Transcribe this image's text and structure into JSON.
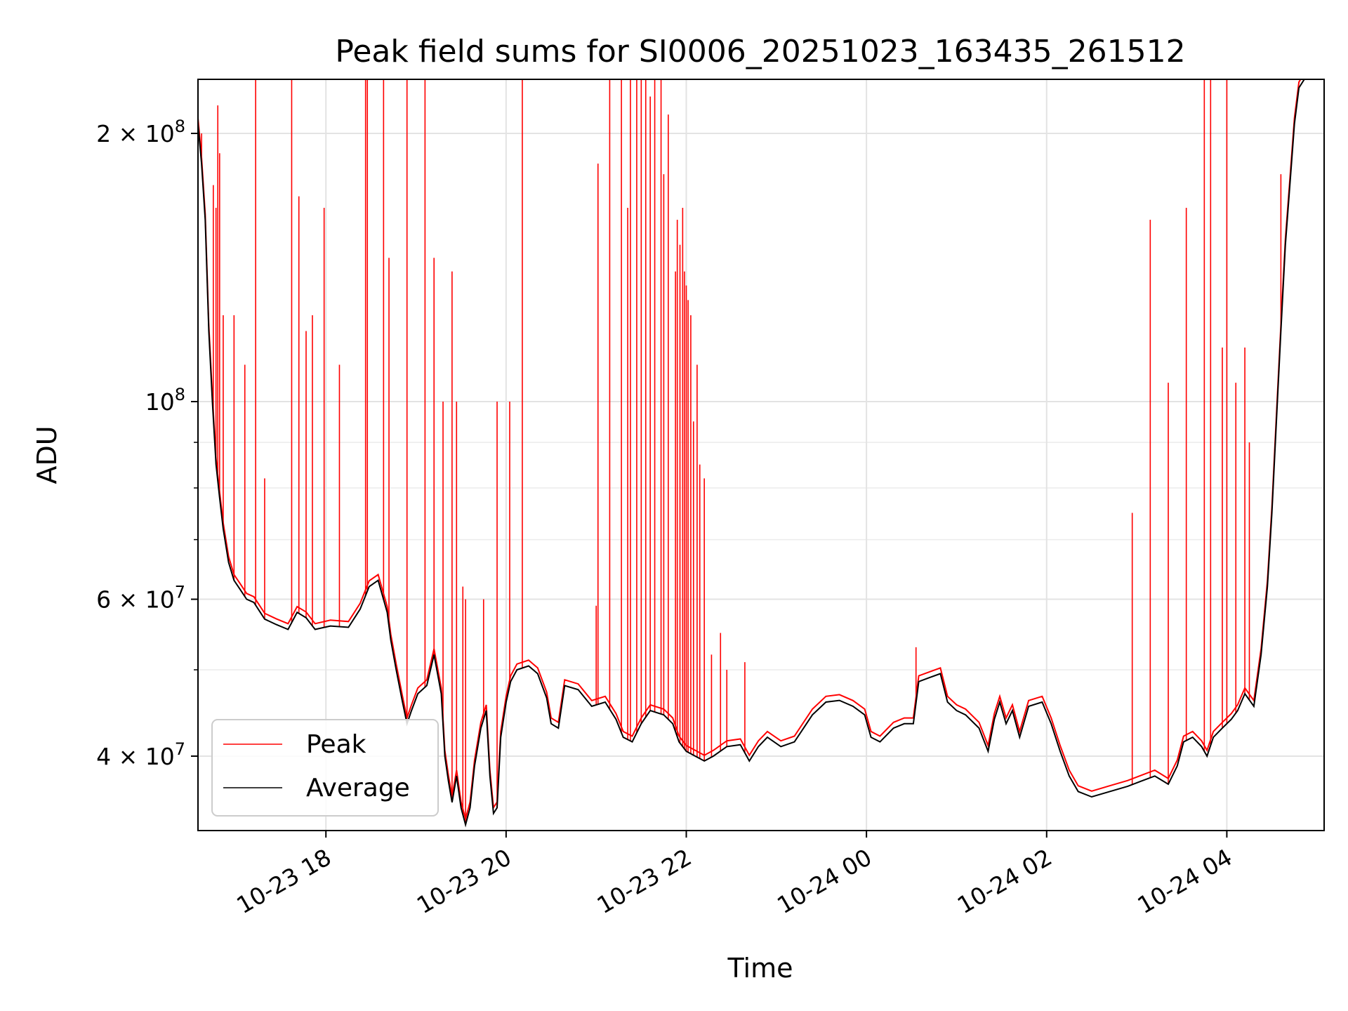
{
  "chart_data": {
    "type": "line",
    "title": "Peak field sums for SI0006_20251023_163435_261512",
    "xlabel": "Time",
    "ylabel": "ADU",
    "yscale": "log",
    "xlim_hours": [
      16.58,
      29.08
    ],
    "ylim": [
      33000000,
      230000000
    ],
    "grid": true,
    "legend_position": "lower-left",
    "x_ticks": [
      {
        "hour": 18,
        "label": "10-23 18"
      },
      {
        "hour": 20,
        "label": "10-23 20"
      },
      {
        "hour": 22,
        "label": "10-23 22"
      },
      {
        "hour": 24,
        "label": "10-24 00"
      },
      {
        "hour": 26,
        "label": "10-24 02"
      },
      {
        "hour": 28,
        "label": "10-24 04"
      }
    ],
    "y_ticks": [
      {
        "value": 40000000,
        "mantissa": "4",
        "exponent": "7"
      },
      {
        "value": 60000000,
        "mantissa": "6",
        "exponent": "7"
      },
      {
        "value": 100000000,
        "mantissa": "",
        "exponent": "8"
      },
      {
        "value": 200000000,
        "mantissa": "2",
        "exponent": "8"
      }
    ],
    "y_tick_base": "10",
    "y_tick_times": "×",
    "y_minor_ticks": [
      50000000,
      70000000,
      80000000,
      90000000
    ],
    "series": [
      {
        "name": "Peak",
        "color": "#ff0000",
        "spikes": [
          [
            16.62,
            200000000.0
          ],
          [
            16.75,
            175000000.0
          ],
          [
            16.78,
            165000000.0
          ],
          [
            16.8,
            215000000.0
          ],
          [
            16.82,
            190000000.0
          ],
          [
            16.86,
            125000000.0
          ],
          [
            16.98,
            125000000.0
          ],
          [
            17.1,
            110000000.0
          ],
          [
            17.22,
            240000000.0
          ],
          [
            17.32,
            82000000.0
          ],
          [
            17.62,
            235000000.0
          ],
          [
            17.7,
            170000000.0
          ],
          [
            17.78,
            120000000.0
          ],
          [
            17.85,
            125000000.0
          ],
          [
            17.98,
            165000000.0
          ],
          [
            18.15,
            110000000.0
          ],
          [
            18.44,
            250000000.0
          ],
          [
            18.46,
            250000000.0
          ],
          [
            18.64,
            250000000.0
          ],
          [
            18.7,
            145000000.0
          ],
          [
            18.9,
            245000000.0
          ],
          [
            19.1,
            250000000.0
          ],
          [
            19.2,
            145000000.0
          ],
          [
            19.3,
            100000000.0
          ],
          [
            19.4,
            140000000.0
          ],
          [
            19.45,
            100000000.0
          ],
          [
            19.52,
            62000000.0
          ],
          [
            19.55,
            60000000.0
          ],
          [
            19.75,
            60000000.0
          ],
          [
            19.9,
            100000000.0
          ],
          [
            20.04,
            100000000.0
          ],
          [
            20.18,
            250000000.0
          ],
          [
            21.0,
            59000000.0
          ],
          [
            21.02,
            185000000.0
          ],
          [
            21.15,
            250000000.0
          ],
          [
            21.28,
            235000000.0
          ],
          [
            21.35,
            165000000.0
          ],
          [
            21.38,
            230000000.0
          ],
          [
            21.45,
            250000000.0
          ],
          [
            21.5,
            250000000.0
          ],
          [
            21.55,
            240000000.0
          ],
          [
            21.6,
            220000000.0
          ],
          [
            21.65,
            230000000.0
          ],
          [
            21.72,
            250000000.0
          ],
          [
            21.75,
            180000000.0
          ],
          [
            21.8,
            210000000.0
          ],
          [
            21.88,
            140000000.0
          ],
          [
            21.9,
            160000000.0
          ],
          [
            21.93,
            150000000.0
          ],
          [
            21.96,
            165000000.0
          ],
          [
            21.98,
            140000000.0
          ],
          [
            22.0,
            135000000.0
          ],
          [
            22.02,
            130000000.0
          ],
          [
            22.05,
            125000000.0
          ],
          [
            22.08,
            95000000.0
          ],
          [
            22.12,
            110000000.0
          ],
          [
            22.15,
            85000000.0
          ],
          [
            22.2,
            82000000.0
          ],
          [
            22.28,
            52000000.0
          ],
          [
            22.38,
            55000000.0
          ],
          [
            22.45,
            50000000.0
          ],
          [
            22.65,
            51000000.0
          ],
          [
            24.55,
            53000000.0
          ],
          [
            26.95,
            75000000.0
          ],
          [
            27.15,
            160000000.0
          ],
          [
            27.35,
            105000000.0
          ],
          [
            27.55,
            165000000.0
          ],
          [
            27.75,
            250000000.0
          ],
          [
            27.82,
            235000000.0
          ],
          [
            27.95,
            115000000.0
          ],
          [
            28.0,
            240000000.0
          ],
          [
            28.1,
            105000000.0
          ],
          [
            28.2,
            115000000.0
          ],
          [
            28.25,
            90000000.0
          ],
          [
            28.6,
            180000000.0
          ]
        ]
      },
      {
        "name": "Average",
        "color": "#000000",
        "points": [
          [
            16.58,
            205000000.0
          ],
          [
            16.62,
            185000000.0
          ],
          [
            16.66,
            160000000.0
          ],
          [
            16.7,
            120000000.0
          ],
          [
            16.74,
            100000000.0
          ],
          [
            16.78,
            85000000.0
          ],
          [
            16.82,
            78000000.0
          ],
          [
            16.86,
            72000000.0
          ],
          [
            16.92,
            66000000.0
          ],
          [
            16.98,
            63000000.0
          ],
          [
            17.05,
            61500000.0
          ],
          [
            17.12,
            60000000.0
          ],
          [
            17.2,
            59500000.0
          ],
          [
            17.32,
            57000000.0
          ],
          [
            17.45,
            56200000.0
          ],
          [
            17.58,
            55500000.0
          ],
          [
            17.68,
            58000000.0
          ],
          [
            17.78,
            57200000.0
          ],
          [
            17.88,
            55500000.0
          ],
          [
            18.05,
            56000000.0
          ],
          [
            18.25,
            55800000.0
          ],
          [
            18.38,
            58500000.0
          ],
          [
            18.48,
            62000000.0
          ],
          [
            18.58,
            63000000.0
          ],
          [
            18.68,
            58000000.0
          ],
          [
            18.72,
            54000000.0
          ],
          [
            18.78,
            50000000.0
          ],
          [
            18.85,
            46000000.0
          ],
          [
            18.9,
            43500000.0
          ],
          [
            18.95,
            45000000.0
          ],
          [
            19.02,
            47000000.0
          ],
          [
            19.12,
            48000000.0
          ],
          [
            19.2,
            52000000.0
          ],
          [
            19.28,
            47000000.0
          ],
          [
            19.32,
            40000000.0
          ],
          [
            19.36,
            37500000.0
          ],
          [
            19.4,
            35500000.0
          ],
          [
            19.45,
            38000000.0
          ],
          [
            19.5,
            35000000.0
          ],
          [
            19.55,
            33500000.0
          ],
          [
            19.6,
            35000000.0
          ],
          [
            19.65,
            39000000.0
          ],
          [
            19.72,
            43000000.0
          ],
          [
            19.78,
            45000000.0
          ],
          [
            19.82,
            38000000.0
          ],
          [
            19.86,
            34500000.0
          ],
          [
            19.9,
            35000000.0
          ],
          [
            19.94,
            42000000.0
          ],
          [
            20.0,
            46000000.0
          ],
          [
            20.05,
            48500000.0
          ],
          [
            20.12,
            50000000.0
          ],
          [
            20.25,
            50500000.0
          ],
          [
            20.35,
            49500000.0
          ],
          [
            20.45,
            46500000.0
          ],
          [
            20.5,
            43500000.0
          ],
          [
            20.58,
            43000000.0
          ],
          [
            20.65,
            48000000.0
          ],
          [
            20.8,
            47500000.0
          ],
          [
            20.95,
            45500000.0
          ],
          [
            21.1,
            46000000.0
          ],
          [
            21.22,
            44000000.0
          ],
          [
            21.3,
            42000000.0
          ],
          [
            21.4,
            41500000.0
          ],
          [
            21.5,
            43500000.0
          ],
          [
            21.6,
            45000000.0
          ],
          [
            21.75,
            44500000.0
          ],
          [
            21.85,
            43500000.0
          ],
          [
            21.92,
            41500000.0
          ],
          [
            22.0,
            40500000.0
          ],
          [
            22.1,
            40000000.0
          ],
          [
            22.2,
            39500000.0
          ],
          [
            22.3,
            40000000.0
          ],
          [
            22.45,
            41000000.0
          ],
          [
            22.6,
            41200000.0
          ],
          [
            22.7,
            39500000.0
          ],
          [
            22.8,
            41000000.0
          ],
          [
            22.9,
            42000000.0
          ],
          [
            23.05,
            41000000.0
          ],
          [
            23.2,
            41500000.0
          ],
          [
            23.4,
            44500000.0
          ],
          [
            23.55,
            46000000.0
          ],
          [
            23.7,
            46200000.0
          ],
          [
            23.85,
            45500000.0
          ],
          [
            23.98,
            44500000.0
          ],
          [
            24.05,
            42000000.0
          ],
          [
            24.15,
            41500000.0
          ],
          [
            24.3,
            43000000.0
          ],
          [
            24.42,
            43500000.0
          ],
          [
            24.52,
            43500000.0
          ],
          [
            24.58,
            48500000.0
          ],
          [
            24.7,
            49000000.0
          ],
          [
            24.82,
            49500000.0
          ],
          [
            24.9,
            46000000.0
          ],
          [
            25.0,
            45000000.0
          ],
          [
            25.1,
            44500000.0
          ],
          [
            25.25,
            43000000.0
          ],
          [
            25.35,
            40500000.0
          ],
          [
            25.42,
            44000000.0
          ],
          [
            25.48,
            46000000.0
          ],
          [
            25.55,
            43500000.0
          ],
          [
            25.62,
            45000000.0
          ],
          [
            25.7,
            42000000.0
          ],
          [
            25.8,
            45500000.0
          ],
          [
            25.95,
            46000000.0
          ],
          [
            26.05,
            43500000.0
          ],
          [
            26.15,
            40500000.0
          ],
          [
            26.25,
            38000000.0
          ],
          [
            26.35,
            36500000.0
          ],
          [
            26.5,
            36000000.0
          ],
          [
            26.7,
            36500000.0
          ],
          [
            26.9,
            37000000.0
          ],
          [
            27.05,
            37500000.0
          ],
          [
            27.2,
            38000000.0
          ],
          [
            27.35,
            37200000.0
          ],
          [
            27.45,
            39000000.0
          ],
          [
            27.52,
            41500000.0
          ],
          [
            27.62,
            42000000.0
          ],
          [
            27.72,
            41000000.0
          ],
          [
            27.78,
            40000000.0
          ],
          [
            27.85,
            42000000.0
          ],
          [
            27.95,
            43000000.0
          ],
          [
            28.05,
            44000000.0
          ],
          [
            28.12,
            45000000.0
          ],
          [
            28.2,
            47000000.0
          ],
          [
            28.3,
            45500000.0
          ],
          [
            28.38,
            52000000.0
          ],
          [
            28.45,
            62000000.0
          ],
          [
            28.5,
            75000000.0
          ],
          [
            28.55,
            95000000.0
          ],
          [
            28.6,
            120000000.0
          ],
          [
            28.65,
            150000000.0
          ],
          [
            28.7,
            175000000.0
          ],
          [
            28.75,
            205000000.0
          ],
          [
            28.8,
            225000000.0
          ],
          [
            28.86,
            230000000.0
          ],
          [
            29.08,
            230000000.0
          ]
        ]
      }
    ]
  }
}
